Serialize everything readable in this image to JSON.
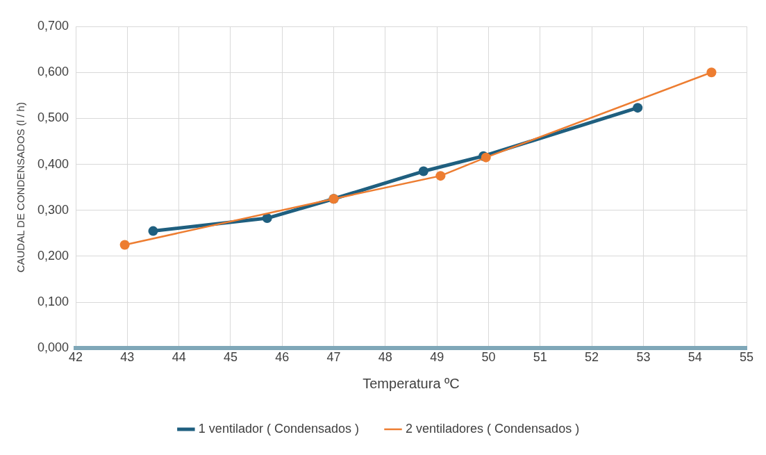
{
  "chart_data": {
    "type": "line",
    "xlabel": "Temperatura ºC",
    "ylabel": "CAUDAL DE CONDENSADOS (l / h)",
    "xlim": [
      42,
      55
    ],
    "xticks": [
      42,
      43,
      44,
      45,
      46,
      47,
      48,
      49,
      50,
      51,
      52,
      53,
      54,
      55
    ],
    "ylim": [
      0,
      0.7
    ],
    "yticks": [
      {
        "value": 0,
        "label": "0,000"
      },
      {
        "value": 0.1,
        "label": "0,100"
      },
      {
        "value": 0.2,
        "label": "0,200"
      },
      {
        "value": 0.3,
        "label": "0,300"
      },
      {
        "value": 0.4,
        "label": "0,400"
      },
      {
        "value": 0.5,
        "label": "0,500"
      },
      {
        "value": 0.6,
        "label": "0,600"
      },
      {
        "value": 0.7,
        "label": "0,700"
      }
    ],
    "grid": true,
    "legend": "bottom",
    "marker": "circle",
    "line_style": "solid",
    "series": [
      {
        "name": "1 ventilador ( Condensados )",
        "color": "#1f5f7f",
        "x": [
          43.5,
          45.71,
          47.0,
          48.74,
          49.9,
          52.89
        ],
        "values": [
          0.255,
          0.283,
          0.325,
          0.385,
          0.418,
          0.523
        ]
      },
      {
        "name": "2 ventiladores ( Condensados )",
        "color": "#ed7d31",
        "x": [
          42.95,
          47.0,
          49.07,
          49.95,
          54.32
        ],
        "values": [
          0.225,
          0.325,
          0.375,
          0.415,
          0.6
        ]
      }
    ]
  }
}
